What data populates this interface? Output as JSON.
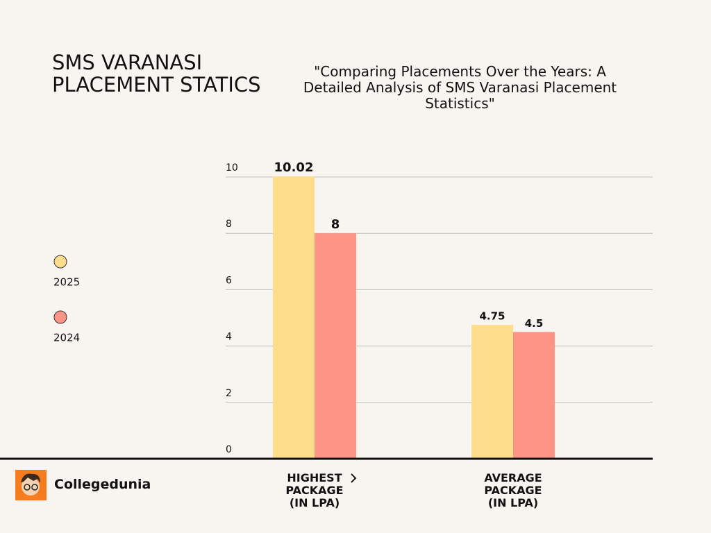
{
  "chart_data": {
    "type": "bar",
    "title": "SMS VARANASI PLACEMENT STATICS",
    "subtitle": "\"Comparing Placements Over the Years: A Detailed Analysis of SMS Varanasi Placement Statistics\"",
    "categories": [
      "HIGHEST PACKAGE (IN LPA)",
      "AVERAGE PACKAGE (IN LPA)"
    ],
    "series": [
      {
        "name": "2025",
        "color": "#fddc8c",
        "values": [
          10.02,
          4.75
        ]
      },
      {
        "name": "2024",
        "color": "#fd9485",
        "values": [
          8,
          4.5
        ]
      }
    ],
    "ylim": [
      0,
      10
    ],
    "yticks": [
      0,
      2,
      4,
      6,
      8,
      10
    ],
    "grid": true,
    "legend": "left"
  },
  "brand": "Collegedunia"
}
